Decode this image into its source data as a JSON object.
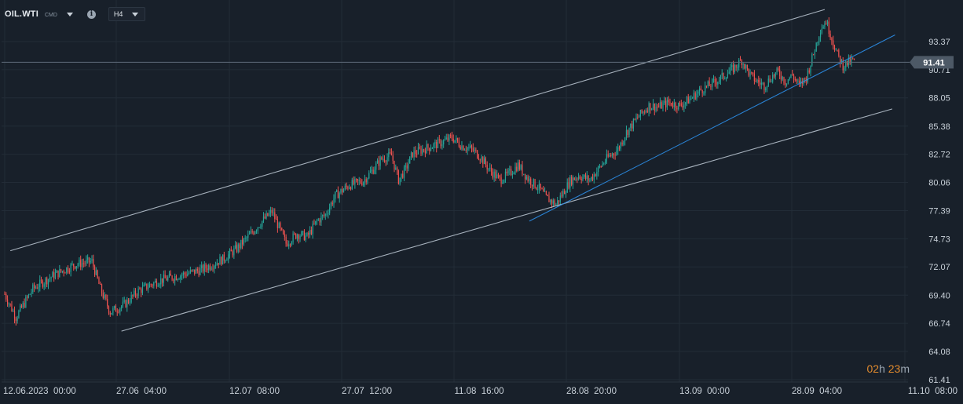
{
  "instrument": {
    "symbol": "OIL.WTI",
    "type_tag": "CMD",
    "timeframe": "H4",
    "dropdown_icon": "chevron-down-icon",
    "info_icon": "info-icon"
  },
  "countdown": {
    "hours": "02",
    "hours_unit": "h",
    "minutes": "23",
    "minutes_unit": "m"
  },
  "colors": {
    "background": "#18202a",
    "bullish": "#26a69a",
    "bearish": "#ef5350",
    "channel_line": "#b7c2ce",
    "trendline": "#2c8ee8",
    "price_marker": "#4d5966",
    "countdown": "#e08a2e"
  },
  "chart_data": {
    "type": "candlestick",
    "timeframe": "H4",
    "x_ticks": [
      "12.06.2023  00:00",
      "27.06  04:00",
      "12.07  08:00",
      "27.07  12:00",
      "11.08  16:00",
      "28.08  20:00",
      "13.09  00:00",
      "28.09  04:00",
      "11.10  08:00"
    ],
    "y_ticks": [
      93.37,
      90.71,
      88.05,
      85.38,
      82.72,
      80.06,
      77.39,
      74.73,
      72.07,
      69.4,
      66.74,
      64.08,
      61.41
    ],
    "ylim": [
      61.41,
      96.0
    ],
    "current_price": 91.41,
    "grid": true,
    "close_path": [
      [
        0,
        69.5
      ],
      [
        8,
        67.3
      ],
      [
        20,
        70.0
      ],
      [
        35,
        71.3
      ],
      [
        50,
        72.3
      ],
      [
        62,
        72.6
      ],
      [
        68,
        70.0
      ],
      [
        75,
        67.8
      ],
      [
        85,
        68.5
      ],
      [
        95,
        69.8
      ],
      [
        110,
        70.8
      ],
      [
        125,
        71.3
      ],
      [
        140,
        71.8
      ],
      [
        155,
        72.8
      ],
      [
        165,
        73.8
      ],
      [
        175,
        75.2
      ],
      [
        183,
        76.4
      ],
      [
        190,
        77.3
      ],
      [
        195,
        75.8
      ],
      [
        200,
        74.3
      ],
      [
        208,
        75.2
      ],
      [
        215,
        74.9
      ],
      [
        222,
        76.4
      ],
      [
        228,
        77.0
      ],
      [
        235,
        78.8
      ],
      [
        245,
        79.8
      ],
      [
        255,
        80.2
      ],
      [
        262,
        81.3
      ],
      [
        268,
        82.3
      ],
      [
        275,
        82.6
      ],
      [
        280,
        80.3
      ],
      [
        285,
        81.3
      ],
      [
        290,
        82.8
      ],
      [
        300,
        83.3
      ],
      [
        310,
        83.8
      ],
      [
        318,
        84.3
      ],
      [
        325,
        83.5
      ],
      [
        332,
        83.2
      ],
      [
        338,
        82.5
      ],
      [
        345,
        81.2
      ],
      [
        352,
        80.3
      ],
      [
        358,
        80.8
      ],
      [
        365,
        81.7
      ],
      [
        372,
        80.4
      ],
      [
        380,
        79.5
      ],
      [
        385,
        78.6
      ],
      [
        392,
        78.0
      ],
      [
        398,
        79.3
      ],
      [
        402,
        80.2
      ],
      [
        408,
        80.7
      ],
      [
        416,
        80.3
      ],
      [
        422,
        81.3
      ],
      [
        428,
        82.3
      ],
      [
        436,
        83.2
      ],
      [
        442,
        84.8
      ],
      [
        450,
        86.2
      ],
      [
        458,
        87.3
      ],
      [
        465,
        87.2
      ],
      [
        472,
        87.6
      ],
      [
        480,
        87.3
      ],
      [
        488,
        88.0
      ],
      [
        495,
        88.8
      ],
      [
        502,
        89.3
      ],
      [
        510,
        90.0
      ],
      [
        518,
        90.8
      ],
      [
        524,
        91.6
      ],
      [
        530,
        90.2
      ],
      [
        535,
        89.6
      ],
      [
        540,
        89.2
      ],
      [
        545,
        90.0
      ],
      [
        550,
        90.5
      ],
      [
        555,
        89.6
      ],
      [
        560,
        90.2
      ],
      [
        565,
        89.2
      ],
      [
        570,
        90.0
      ],
      [
        575,
        92.2
      ],
      [
        580,
        94.6
      ],
      [
        584,
        95.3
      ],
      [
        588,
        93.7
      ],
      [
        592,
        92.1
      ],
      [
        596,
        91.1
      ],
      [
        600,
        91.4
      ],
      [
        604,
        91.6
      ]
    ],
    "channel_lines": [
      {
        "name": "channel-upper",
        "p1": [
          4,
          73.6
        ],
        "p2": [
          583,
          96.4
        ]
      },
      {
        "name": "channel-lower",
        "p1": [
          83,
          66.0
        ],
        "p2": [
          631,
          87.0
        ]
      },
      {
        "name": "uptrend-line",
        "p1": [
          373,
          76.4
        ],
        "p2": [
          633,
          94.0
        ]
      }
    ]
  }
}
